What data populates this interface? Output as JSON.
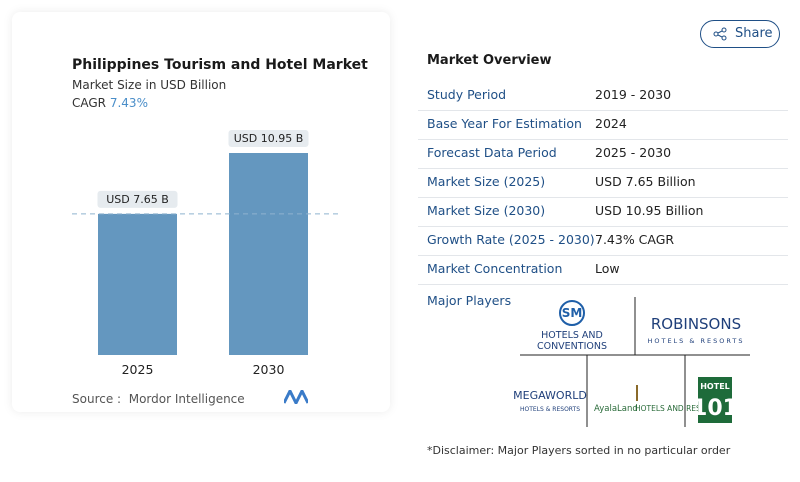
{
  "chart_data": {
    "type": "bar",
    "title": "Philippines Tourism and Hotel Market",
    "subtitle": "Market Size in USD Billion",
    "cagr_label": "CAGR",
    "cagr_value": "7.43%",
    "categories": [
      "2025",
      "2030"
    ],
    "values": [
      7.65,
      10.95
    ],
    "value_labels": [
      "USD 7.65 B",
      "USD 10.95 B"
    ],
    "color": "#6497bf",
    "source_label": "Source :",
    "source": "Mordor Intelligence"
  },
  "share": "Share",
  "market_overview": {
    "title": "Market Overview",
    "rows": [
      {
        "label": "Study Period",
        "value": "2019 - 2030"
      },
      {
        "label": "Base Year For Estimation",
        "value": "2024"
      },
      {
        "label": "Forecast Data Period",
        "value": "2025 - 2030"
      },
      {
        "label": "Market Size (2025)",
        "value": "USD 7.65 Billion"
      },
      {
        "label": "Market Size (2030)",
        "value": "USD 10.95 Billion"
      },
      {
        "label": "Growth Rate (2025 - 2030)",
        "value": "7.43% CAGR"
      },
      {
        "label": "Market Concentration",
        "value": "Low"
      }
    ],
    "players_title": "Major Players",
    "players": [
      {
        "mark": "SM",
        "name": "HOTELS AND",
        "sub": "CONVENTIONS"
      },
      {
        "name": "ROBINSONS",
        "sub": "HOTELS & RESORTS"
      },
      {
        "name": "MEGAWORLD",
        "sub": "HOTELS & RESORTS"
      },
      {
        "name": "AyalaLand",
        "sub": "HOTELS AND RESORTS"
      },
      {
        "name": "HOTEL",
        "sub": "101"
      }
    ],
    "disclaimer": "*Disclaimer: Major Players sorted in no particular order"
  }
}
